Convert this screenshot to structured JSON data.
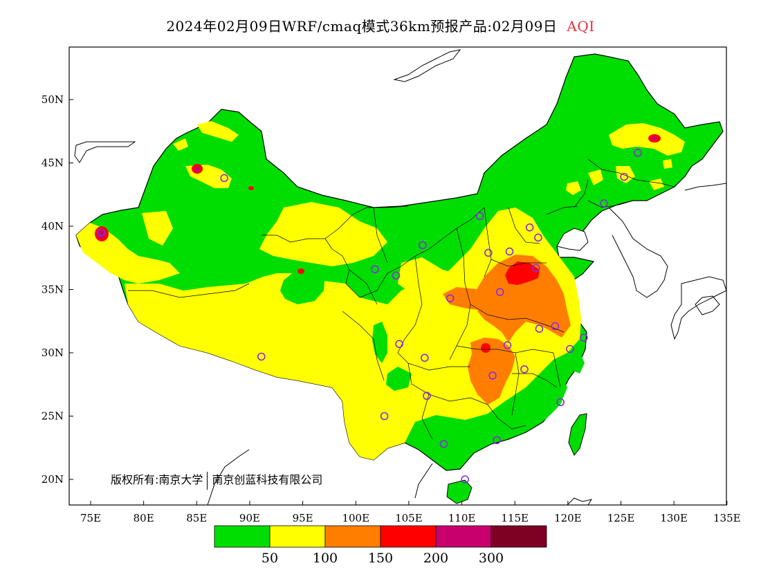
{
  "title": {
    "main": "2024年02月09日WRF/cmaq模式36km预报产品:02月09日",
    "variable": "AQI",
    "variable_color": "#e0333a"
  },
  "axes": {
    "lat_labels": [
      "50N",
      "45N",
      "40N",
      "35N",
      "30N",
      "25N",
      "20N"
    ],
    "lat_values": [
      50,
      45,
      40,
      35,
      30,
      25,
      20
    ],
    "lon_labels": [
      "75E",
      "80E",
      "85E",
      "90E",
      "95E",
      "100E",
      "105E",
      "110E",
      "115E",
      "120E",
      "125E",
      "130E",
      "135E"
    ],
    "lon_values": [
      75,
      80,
      85,
      90,
      95,
      100,
      105,
      110,
      115,
      120,
      125,
      130,
      135
    ]
  },
  "legend": {
    "colors": [
      "#00dd00",
      "#ffff00",
      "#ff7e00",
      "#ff0000",
      "#c8006e",
      "#7e0023"
    ],
    "labels": [
      "50",
      "100",
      "150",
      "200",
      "300"
    ]
  },
  "copyright": {
    "owner1": "版权所有:南京大学",
    "owner2": "南京创蓝科技有限公司"
  },
  "stations": [
    [
      87.6,
      43.8
    ],
    [
      76.0,
      39.5
    ],
    [
      91.1,
      29.7
    ],
    [
      101.8,
      36.6
    ],
    [
      103.8,
      36.1
    ],
    [
      106.3,
      38.5
    ],
    [
      111.7,
      40.8
    ],
    [
      114.5,
      38.0
    ],
    [
      112.5,
      37.9
    ],
    [
      116.4,
      39.9
    ],
    [
      117.2,
      39.1
    ],
    [
      117.0,
      36.7
    ],
    [
      113.6,
      34.8
    ],
    [
      108.9,
      34.3
    ],
    [
      104.1,
      30.7
    ],
    [
      106.5,
      29.6
    ],
    [
      106.7,
      26.6
    ],
    [
      102.7,
      25.0
    ],
    [
      108.3,
      22.8
    ],
    [
      113.3,
      23.1
    ],
    [
      110.3,
      20.0
    ],
    [
      119.3,
      26.1
    ],
    [
      115.9,
      28.7
    ],
    [
      112.9,
      28.2
    ],
    [
      114.3,
      30.6
    ],
    [
      117.3,
      31.9
    ],
    [
      118.8,
      32.1
    ],
    [
      120.2,
      30.3
    ],
    [
      121.5,
      31.2
    ],
    [
      123.4,
      41.8
    ],
    [
      125.3,
      43.9
    ],
    [
      126.6,
      45.8
    ]
  ]
}
